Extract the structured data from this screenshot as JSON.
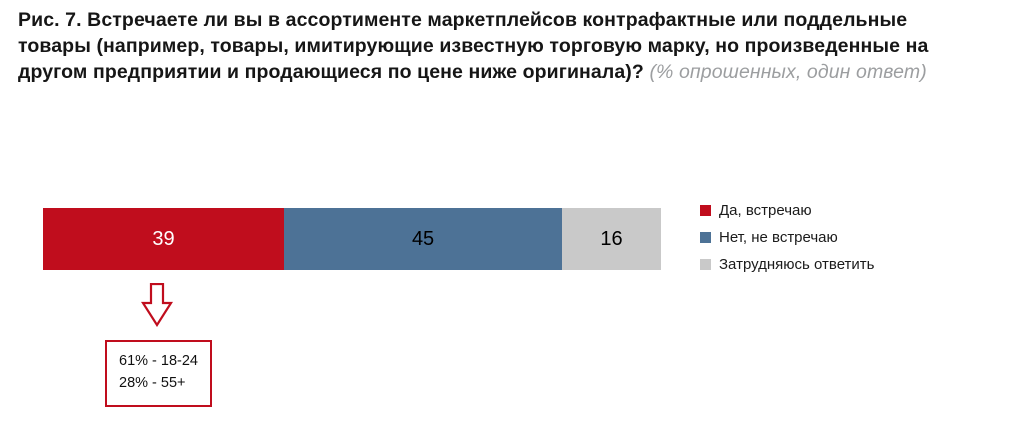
{
  "figure": {
    "title_bold": "Рис. 7. Встречаете ли вы в ассортименте маркетплейсов контрафактные или поддельные товары (например, товары, имитирующие известную торговую марку, но произведенные на другом предприятии и продающиеся по цене ниже оригинала)?",
    "title_note": "(% опрошенных, один ответ)"
  },
  "chart_data": {
    "type": "bar",
    "subtype": "horizontal-stacked",
    "title": "Рис. 7. Встречаете ли вы в ассортименте маркетплейсов контрафактные или поддельные товары?",
    "unit": "% опрошенных",
    "categories": [
      "Да, встречаю",
      "Нет, не встречаю",
      "Затрудняюсь ответить"
    ],
    "values": [
      39,
      45,
      16
    ],
    "colors": [
      "#c00d1d",
      "#4d7296",
      "#c9c9c9"
    ],
    "value_label_colors": [
      "#ffffff",
      "#000000",
      "#000000"
    ],
    "legend_position": "right",
    "xlim": [
      0,
      100
    ],
    "grid": false,
    "annotation": {
      "applies_to": "Да, встречаю",
      "lines": [
        "61% - 18-24",
        "28% - 55+"
      ]
    }
  },
  "legend": {
    "items": [
      {
        "label": "Да, встречаю",
        "color": "#c00d1d"
      },
      {
        "label": "Нет, не встречаю",
        "color": "#4d7296"
      },
      {
        "label": "Затрудняюсь ответить",
        "color": "#c9c9c9"
      }
    ]
  },
  "annotation_box": {
    "line1": "61% - 18-24",
    "line2": "28% - 55+"
  },
  "accent_color": "#c00d1d"
}
